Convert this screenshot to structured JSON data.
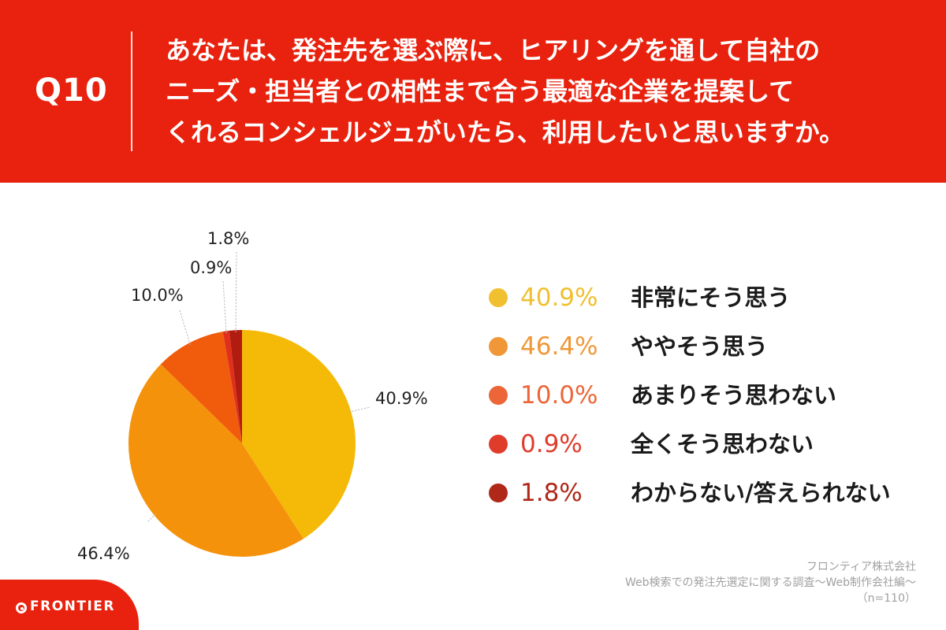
{
  "header": {
    "question_number": "Q10",
    "question_lines": [
      "あなたは、発注先を選ぶ際に、ヒアリングを通して自社の",
      "ニーズ・担当者との相性まで合う最適な企業を提案して",
      "くれるコンシェルジュがいたら、利用したいと思いますか。"
    ]
  },
  "chart_data": {
    "type": "pie",
    "title": "",
    "start": "12 o'clock",
    "direction": "clockwise",
    "slices": [
      {
        "label": "非常にそう思う",
        "value": 40.9,
        "value_label": "40.9%",
        "color": "#f5ba08"
      },
      {
        "label": "ややそう思う",
        "value": 46.4,
        "value_label": "46.4%",
        "color": "#f5920c"
      },
      {
        "label": "あまりそう思わない",
        "value": 10.0,
        "value_label": "10.0%",
        "color": "#f05c0c"
      },
      {
        "label": "全くそう思わない",
        "value": 0.9,
        "value_label": "0.9%",
        "color": "#e0301c"
      },
      {
        "label": "わからない/答えられない",
        "value": 1.8,
        "value_label": "1.8%",
        "color": "#b01c10"
      }
    ],
    "legend_placement": "right"
  },
  "legend_colors": [
    "#f0c030",
    "#f09838",
    "#ec6638",
    "#e03c2c",
    "#b02818"
  ],
  "source": {
    "company": "フロンティア株式会社",
    "survey": "Web検索での発注先選定に関する調査〜Web制作会社編〜",
    "sample": "（n=110）"
  },
  "logo": {
    "text": "FRONTIER"
  },
  "colors": {
    "brand_red": "#e8220e",
    "panel_bg": "#ffffff"
  }
}
